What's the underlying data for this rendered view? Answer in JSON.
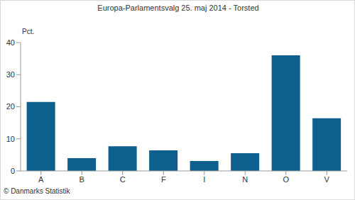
{
  "chart_data": {
    "type": "bar",
    "title": "Europa-Parlamentsvalg 25. maj 2014 - Torsted",
    "y_label": "Pct.",
    "source": "© Danmarks Statistik",
    "categories": [
      "A",
      "B",
      "C",
      "F",
      "I",
      "N",
      "O",
      "V"
    ],
    "values": [
      21.5,
      4.0,
      7.7,
      6.4,
      3.1,
      5.5,
      36.0,
      16.4
    ],
    "color": "#0d5f8e",
    "ylim": [
      0,
      40
    ],
    "yticks": [
      0,
      10,
      20,
      30,
      40
    ],
    "grid": false
  }
}
